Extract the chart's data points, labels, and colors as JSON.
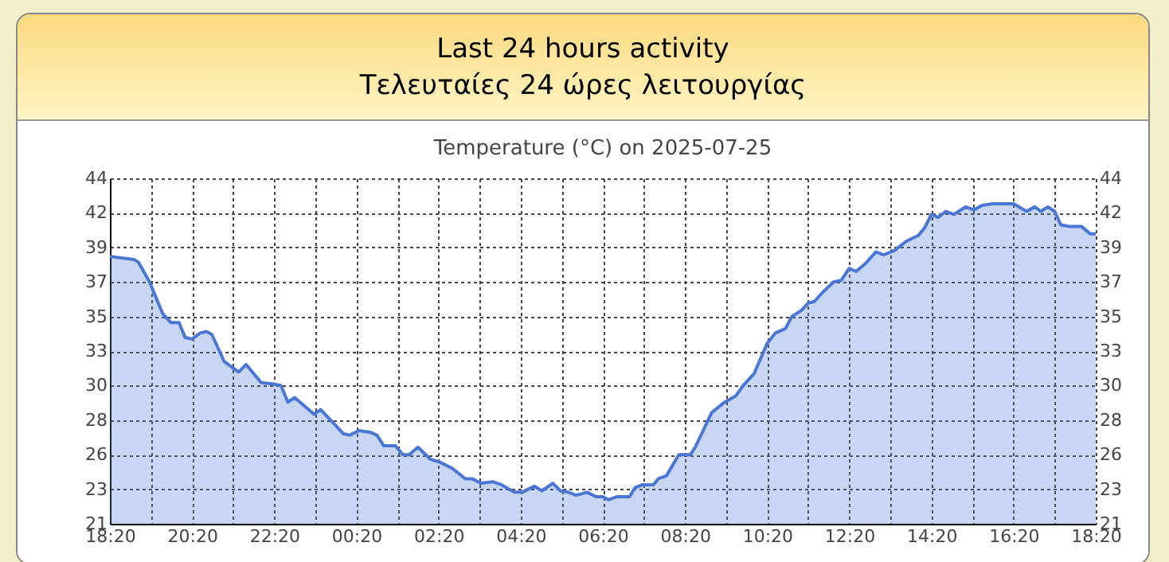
{
  "chart_data": {
    "type": "area",
    "title": "Temperature (°C) on 2025-07-25",
    "annotations": [
      "Last 24 hours activity",
      "Τελευταίες 24 ώρες λειτουργίας"
    ],
    "x": [
      "2025-07-24T18:20",
      "2025-07-24T18:55",
      "2025-07-24T19:02",
      "2025-07-24T19:18",
      "2025-07-24T19:37",
      "2025-07-24T19:49",
      "2025-07-24T20:01",
      "2025-07-24T20:10",
      "2025-07-24T20:20",
      "2025-07-24T20:32",
      "2025-07-24T20:41",
      "2025-07-24T20:49",
      "2025-07-24T21:07",
      "2025-07-24T21:28",
      "2025-07-24T21:39",
      "2025-07-24T22:01",
      "2025-07-24T22:20",
      "2025-07-24T22:30",
      "2025-07-24T22:40",
      "2025-07-24T22:50",
      "2025-07-24T23:18",
      "2025-07-24T23:28",
      "2025-07-25T00:01",
      "2025-07-25T00:10",
      "2025-07-25T00:24",
      "2025-07-25T00:40",
      "2025-07-25T00:50",
      "2025-07-25T01:00",
      "2025-07-25T01:17",
      "2025-07-25T01:28",
      "2025-07-25T01:37",
      "2025-07-25T01:50",
      "2025-07-25T02:08",
      "2025-07-25T02:22",
      "2025-07-25T02:40",
      "2025-07-25T02:59",
      "2025-07-25T03:09",
      "2025-07-25T03:22",
      "2025-07-25T03:39",
      "2025-07-25T03:52",
      "2025-07-25T04:11",
      "2025-07-25T04:22",
      "2025-07-25T04:40",
      "2025-07-25T04:51",
      "2025-07-25T05:07",
      "2025-07-25T05:18",
      "2025-07-25T05:30",
      "2025-07-25T05:41",
      "2025-07-25T05:57",
      "2025-07-25T06:10",
      "2025-07-25T06:20",
      "2025-07-25T06:28",
      "2025-07-25T06:40",
      "2025-07-25T06:59",
      "2025-07-25T07:07",
      "2025-07-25T07:18",
      "2025-07-25T07:34",
      "2025-07-25T07:41",
      "2025-07-25T07:53",
      "2025-07-25T08:11",
      "2025-07-25T08:28",
      "2025-07-25T08:35",
      "2025-07-25T08:59",
      "2025-07-25T09:18",
      "2025-07-25T09:34",
      "2025-07-25T09:45",
      "2025-07-25T10:01",
      "2025-07-25T10:20",
      "2025-07-25T10:32",
      "2025-07-25T10:47",
      "2025-07-25T10:56",
      "2025-07-25T11:10",
      "2025-07-25T11:20",
      "2025-07-25T11:29",
      "2025-07-25T11:41",
      "2025-07-25T11:57",
      "2025-07-25T12:08",
      "2025-07-25T12:20",
      "2025-07-25T12:30",
      "2025-07-25T12:43",
      "2025-07-25T12:59",
      "2025-07-25T13:10",
      "2025-07-25T13:26",
      "2025-07-25T13:43",
      "2025-07-25T14:01",
      "2025-07-25T14:10",
      "2025-07-25T14:20",
      "2025-07-25T14:30",
      "2025-07-25T14:41",
      "2025-07-25T14:53",
      "2025-07-25T15:10",
      "2025-07-25T15:22",
      "2025-07-25T15:34",
      "2025-07-25T15:49",
      "2025-07-25T16:20",
      "2025-07-25T16:39",
      "2025-07-25T16:51",
      "2025-07-25T17:00",
      "2025-07-25T17:10",
      "2025-07-25T17:20",
      "2025-07-25T17:29",
      "2025-07-25T17:41",
      "2025-07-25T17:59",
      "2025-07-25T18:12",
      "2025-07-25T18:20"
    ],
    "series": [
      {
        "color": "#4a76d6",
        "values": [
          38.8,
          38.6,
          38.4,
          37.1,
          35.0,
          34.4,
          34.4,
          33.4,
          33.3,
          33.7,
          33.8,
          33.6,
          31.8,
          31.1,
          31.6,
          30.4,
          30.3,
          30.2,
          29.1,
          29.4,
          28.3,
          28.6,
          27.0,
          26.9,
          27.2,
          27.1,
          26.9,
          26.2,
          26.2,
          25.6,
          25.6,
          26.1,
          25.3,
          25.1,
          24.7,
          24.0,
          24.0,
          23.7,
          23.8,
          23.6,
          23.1,
          23.1,
          23.5,
          23.2,
          23.7,
          23.2,
          23.1,
          22.9,
          23.1,
          22.8,
          22.8,
          22.6,
          22.8,
          22.8,
          23.4,
          23.6,
          23.6,
          24.0,
          24.2,
          25.6,
          25.6,
          26.1,
          28.4,
          29.1,
          29.5,
          30.2,
          31.0,
          33.0,
          33.7,
          34.0,
          34.8,
          35.2,
          35.7,
          35.8,
          36.4,
          37.1,
          37.2,
          38.0,
          37.8,
          38.3,
          39.1,
          38.9,
          39.2,
          39.8,
          40.2,
          40.7,
          41.6,
          41.4,
          41.8,
          41.6,
          42.1,
          41.9,
          42.2,
          42.3,
          42.3,
          41.8,
          42.1,
          41.8,
          42.1,
          41.8,
          40.9,
          40.8,
          40.8,
          40.3,
          40.3
        ]
      }
    ],
    "xlim": [
      "2025-07-24T18:20",
      "2025-07-25T18:20"
    ],
    "xticks": [
      {
        "value": "2025-07-24T18:20",
        "label": "18:20"
      },
      {
        "value": "2025-07-24T19:20",
        "label": null
      },
      {
        "value": "2025-07-24T20:20",
        "label": "20:20"
      },
      {
        "value": "2025-07-24T21:20",
        "label": null
      },
      {
        "value": "2025-07-24T22:20",
        "label": "22:20"
      },
      {
        "value": "2025-07-24T23:20",
        "label": null
      },
      {
        "value": "2025-07-25T00:20",
        "label": "00:20"
      },
      {
        "value": "2025-07-25T01:20",
        "label": null
      },
      {
        "value": "2025-07-25T02:20",
        "label": "02:20"
      },
      {
        "value": "2025-07-25T03:20",
        "label": null
      },
      {
        "value": "2025-07-25T04:20",
        "label": "04:20"
      },
      {
        "value": "2025-07-25T05:20",
        "label": null
      },
      {
        "value": "2025-07-25T06:20",
        "label": "06:20"
      },
      {
        "value": "2025-07-25T07:20",
        "label": null
      },
      {
        "value": "2025-07-25T08:20",
        "label": "08:20"
      },
      {
        "value": "2025-07-25T09:20",
        "label": null
      },
      {
        "value": "2025-07-25T10:20",
        "label": "10:20"
      },
      {
        "value": "2025-07-25T11:20",
        "label": null
      },
      {
        "value": "2025-07-25T12:20",
        "label": "12:20"
      },
      {
        "value": "2025-07-25T13:20",
        "label": null
      },
      {
        "value": "2025-07-25T14:20",
        "label": "14:20"
      },
      {
        "value": "2025-07-25T15:20",
        "label": null
      },
      {
        "value": "2025-07-25T16:20",
        "label": "16:20"
      },
      {
        "value": "2025-07-25T17:20",
        "label": null
      },
      {
        "value": "2025-07-25T18:20",
        "label": "18:20"
      }
    ],
    "ylim": [
      21,
      44
    ],
    "yticks": [
      21,
      {
        "value": 23.3,
        "label": "23"
      },
      {
        "value": 25.6,
        "label": "26"
      },
      {
        "value": 27.9,
        "label": "28"
      },
      {
        "value": 30.2,
        "label": "30"
      },
      {
        "value": 32.5,
        "label": "33"
      },
      {
        "value": 34.8,
        "label": "35"
      },
      {
        "value": 37.1,
        "label": "37"
      },
      {
        "value": 39.4,
        "label": "39"
      },
      {
        "value": 41.7,
        "label": "42"
      },
      44
    ],
    "y2lim": [
      21,
      44
    ],
    "y2ticks": [
      21,
      {
        "value": 23.3,
        "label": "23"
      },
      {
        "value": 25.6,
        "label": "26"
      },
      {
        "value": 27.9,
        "label": "28"
      },
      {
        "value": 30.2,
        "label": "30"
      },
      {
        "value": 32.5,
        "label": "33"
      },
      {
        "value": 34.8,
        "label": "35"
      },
      {
        "value": 37.1,
        "label": "37"
      },
      {
        "value": 39.4,
        "label": "39"
      },
      {
        "value": 41.7,
        "label": "42"
      },
      44
    ],
    "grid": true
  }
}
